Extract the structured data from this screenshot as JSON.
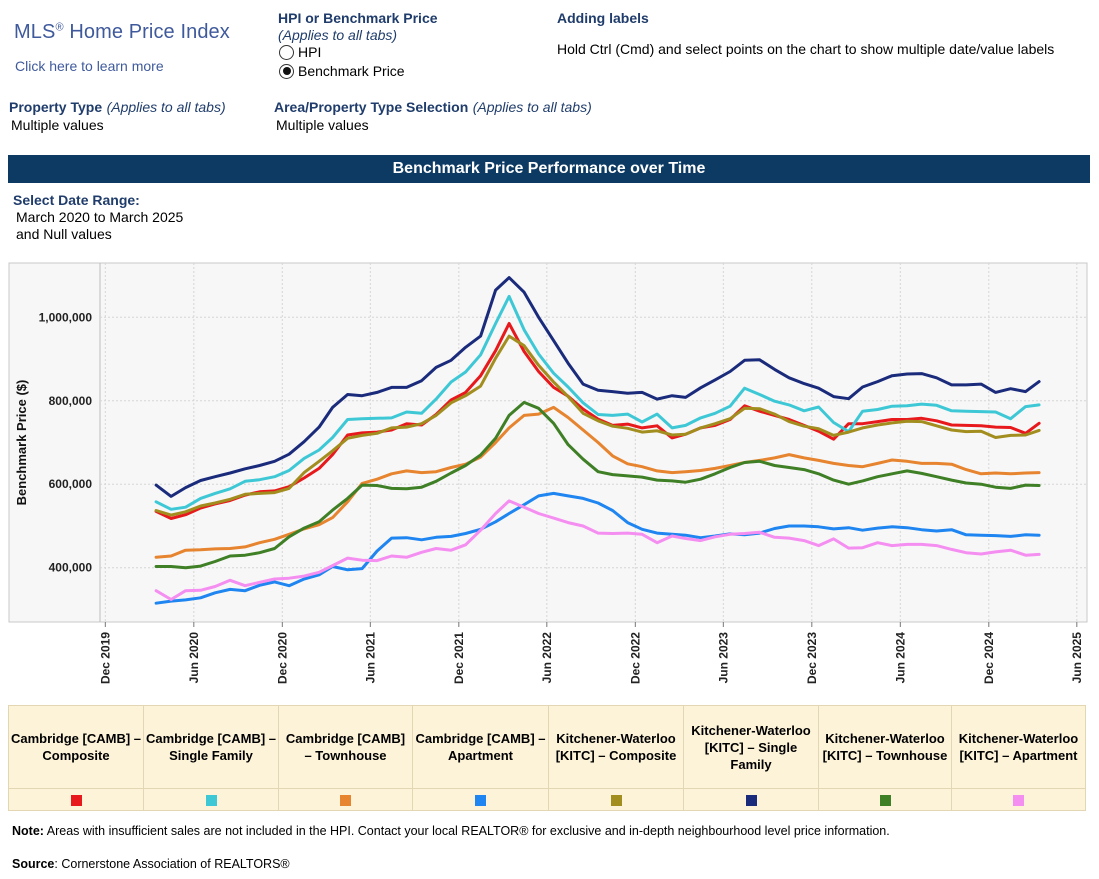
{
  "header": {
    "logo_title": "MLS",
    "logo_reg": "®",
    "logo_title_rest": " Home Price Index",
    "logo_link": "Click here to learn more",
    "hpi_toggle": {
      "title": "HPI or Benchmark Price",
      "subtitle": "(Applies to all tabs)",
      "options": [
        "HPI",
        "Benchmark Price"
      ],
      "selected": "Benchmark Price"
    },
    "labels_help": {
      "title": "Adding labels",
      "text": "Hold Ctrl (Cmd) and select points on the chart to show multiple date/value labels"
    },
    "property_type": {
      "label": "Property Type",
      "note": "(Applies to all tabs)",
      "value": "Multiple values"
    },
    "area_selection": {
      "label": "Area/Property Type Selection",
      "note": "(Applies to all tabs)",
      "value": "Multiple values"
    }
  },
  "banner": "Benchmark Price Performance over Time",
  "date_range": {
    "label": "Select Date Range:",
    "line1": "March 2020 to March 2025",
    "line2": "and Null values"
  },
  "chart_data": {
    "type": "line",
    "title": "Benchmark Price Performance over Time",
    "ylabel": "Benchmark Price ($)",
    "xlabel": "",
    "ylim": [
      270000,
      1130000
    ],
    "yticks": [
      400000,
      600000,
      800000,
      1000000
    ],
    "ytick_labels": [
      "400,000",
      "600,000",
      "800,000",
      "1,000,000"
    ],
    "xlim": [
      "2019-11-20",
      "2025-06-20"
    ],
    "xticks": [
      "2019-12-01",
      "2020-06-01",
      "2020-12-01",
      "2021-06-01",
      "2021-12-01",
      "2022-06-01",
      "2022-12-01",
      "2023-06-01",
      "2023-12-01",
      "2024-06-01",
      "2024-12-01",
      "2025-06-01"
    ],
    "xtick_labels": [
      "Dec 2019",
      "Jun 2020",
      "Dec 2020",
      "Jun 2021",
      "Dec 2021",
      "Jun 2022",
      "Dec 2022",
      "Jun 2023",
      "Dec 2023",
      "Jun 2024",
      "Dec 2024",
      "Jun 2025"
    ],
    "grid": true,
    "x": [
      "2020-03",
      "2020-04",
      "2020-05",
      "2020-06",
      "2020-07",
      "2020-08",
      "2020-09",
      "2020-10",
      "2020-11",
      "2020-12",
      "2021-01",
      "2021-02",
      "2021-03",
      "2021-04",
      "2021-05",
      "2021-06",
      "2021-07",
      "2021-08",
      "2021-09",
      "2021-10",
      "2021-11",
      "2021-12",
      "2022-01",
      "2022-02",
      "2022-03",
      "2022-04",
      "2022-05",
      "2022-06",
      "2022-07",
      "2022-08",
      "2022-09",
      "2022-10",
      "2022-11",
      "2022-12",
      "2023-01",
      "2023-02",
      "2023-03",
      "2023-04",
      "2023-05",
      "2023-06",
      "2023-07",
      "2023-08",
      "2023-09",
      "2023-10",
      "2023-11",
      "2023-12",
      "2024-01",
      "2024-02",
      "2024-03",
      "2024-04",
      "2024-05",
      "2024-06",
      "2024-07",
      "2024-08",
      "2024-09",
      "2024-10",
      "2024-11",
      "2024-12",
      "2025-01",
      "2025-02",
      "2025-03"
    ],
    "series": [
      {
        "name": "Cambridge [CAMB] – Composite",
        "color": "#e8191c",
        "values": [
          535000,
          518000,
          527000,
          543000,
          553000,
          561000,
          574000,
          582000,
          584000,
          594000,
          615000,
          638000,
          671000,
          718000,
          723000,
          725000,
          730000,
          745000,
          742000,
          767000,
          802000,
          820000,
          860000,
          920000,
          985000,
          918000,
          870000,
          832000,
          811000,
          780000,
          756000,
          741000,
          744000,
          735000,
          740000,
          711000,
          720000,
          735000,
          741000,
          755000,
          788000,
          775000,
          765000,
          755000,
          741000,
          727000,
          708000,
          745000,
          745000,
          750000,
          755000,
          755000,
          758000,
          752000,
          742000,
          741000,
          740000,
          737000,
          736000,
          722000,
          746000
        ]
      },
      {
        "name": "Cambridge [CAMB] – Single Family",
        "color": "#3ec8d6",
        "values": [
          558000,
          540000,
          545000,
          566000,
          578000,
          589000,
          607000,
          611000,
          618000,
          633000,
          662000,
          682000,
          712000,
          755000,
          757000,
          758000,
          759000,
          773000,
          770000,
          804000,
          845000,
          869000,
          910000,
          985000,
          1050000,
          970000,
          912000,
          866000,
          833000,
          795000,
          767000,
          765000,
          768000,
          749000,
          768000,
          735000,
          741000,
          759000,
          770000,
          787000,
          830000,
          815000,
          799000,
          790000,
          776000,
          785000,
          748000,
          726000,
          775000,
          779000,
          787000,
          788000,
          792000,
          789000,
          776000,
          775000,
          774000,
          773000,
          757000,
          786000,
          790000
        ]
      },
      {
        "name": "Cambridge [CAMB] – Townhouse",
        "color": "#e6842f",
        "values": [
          425000,
          428000,
          442000,
          443000,
          445000,
          446000,
          450000,
          460000,
          468000,
          480000,
          493000,
          503000,
          520000,
          558000,
          602000,
          612000,
          625000,
          632000,
          628000,
          630000,
          640000,
          648000,
          665000,
          700000,
          735000,
          765000,
          768000,
          784000,
          760000,
          730000,
          700000,
          668000,
          649000,
          642000,
          632000,
          628000,
          630000,
          633000,
          638000,
          645000,
          652000,
          657000,
          663000,
          671000,
          663000,
          657000,
          650000,
          645000,
          642000,
          650000,
          658000,
          655000,
          650000,
          650000,
          648000,
          635000,
          625000,
          627000,
          625000,
          627000,
          628000
        ]
      },
      {
        "name": "Cambridge [CAMB] – Apartment",
        "color": "#1f85f0",
        "values": [
          315000,
          320000,
          323000,
          328000,
          340000,
          348000,
          345000,
          358000,
          366000,
          357000,
          373000,
          383000,
          403000,
          395000,
          398000,
          440000,
          471000,
          472000,
          467000,
          473000,
          475000,
          482000,
          492000,
          510000,
          530000,
          551000,
          572000,
          578000,
          572000,
          566000,
          555000,
          537000,
          508000,
          492000,
          483000,
          480000,
          478000,
          472000,
          476000,
          481000,
          479000,
          483000,
          494000,
          500000,
          500000,
          498000,
          493000,
          496000,
          490000,
          495000,
          498000,
          496000,
          491000,
          488000,
          491000,
          479000,
          478000,
          477000,
          475000,
          479000,
          478000
        ]
      },
      {
        "name": "Kitchener-Waterloo [KITC] – Composite",
        "color": "#a28d1f",
        "values": [
          537000,
          526000,
          534000,
          548000,
          555000,
          564000,
          576000,
          578000,
          580000,
          590000,
          628000,
          655000,
          680000,
          710000,
          717000,
          722000,
          735000,
          737000,
          745000,
          765000,
          795000,
          812000,
          835000,
          902000,
          955000,
          932000,
          885000,
          845000,
          810000,
          770000,
          752000,
          739000,
          734000,
          725000,
          728000,
          718000,
          720000,
          735000,
          745000,
          757000,
          782000,
          781000,
          768000,
          750000,
          739000,
          733000,
          717000,
          725000,
          735000,
          742000,
          747000,
          751000,
          750000,
          740000,
          730000,
          726000,
          727000,
          712000,
          717000,
          718000,
          729000
        ]
      },
      {
        "name": "Kitchener-Waterloo [KITC] – Single Family",
        "color": "#1b2b7c",
        "values": [
          598000,
          571000,
          592000,
          609000,
          618000,
          627000,
          637000,
          645000,
          655000,
          672000,
          702000,
          737000,
          784000,
          815000,
          812000,
          820000,
          832000,
          832000,
          848000,
          880000,
          897000,
          928000,
          955000,
          1065000,
          1095000,
          1060000,
          1000000,
          944000,
          890000,
          840000,
          825000,
          822000,
          818000,
          820000,
          804000,
          812000,
          808000,
          831000,
          850000,
          870000,
          897000,
          898000,
          875000,
          855000,
          841000,
          830000,
          810000,
          805000,
          833000,
          846000,
          860000,
          864000,
          865000,
          855000,
          838000,
          838000,
          840000,
          820000,
          829000,
          822000,
          846000
        ]
      },
      {
        "name": "Kitchener-Waterloo [KITC] – Townhouse",
        "color": "#3f7f26",
        "values": [
          403000,
          403000,
          400000,
          404000,
          415000,
          428000,
          430000,
          436000,
          446000,
          474000,
          495000,
          510000,
          538000,
          566000,
          598000,
          597000,
          590000,
          589000,
          593000,
          607000,
          627000,
          645000,
          670000,
          710000,
          765000,
          796000,
          782000,
          746000,
          695000,
          660000,
          630000,
          623000,
          620000,
          617000,
          610000,
          608000,
          605000,
          612000,
          625000,
          640000,
          652000,
          655000,
          645000,
          640000,
          635000,
          625000,
          610000,
          600000,
          608000,
          618000,
          625000,
          632000,
          626000,
          618000,
          610000,
          603000,
          600000,
          593000,
          590000,
          598000,
          597000
        ]
      },
      {
        "name": "Kitchener-Waterloo [KITC] – Apartment",
        "color": "#f58ef1",
        "values": [
          345000,
          324000,
          345000,
          346000,
          355000,
          370000,
          357000,
          365000,
          373000,
          375000,
          380000,
          389000,
          405000,
          423000,
          418000,
          417000,
          428000,
          425000,
          437000,
          446000,
          442000,
          455000,
          490000,
          530000,
          560000,
          545000,
          530000,
          519000,
          508000,
          500000,
          483000,
          482000,
          483000,
          480000,
          460000,
          476000,
          470000,
          465000,
          474000,
          480000,
          482000,
          485000,
          473000,
          471000,
          465000,
          453000,
          469000,
          447000,
          448000,
          460000,
          453000,
          456000,
          456000,
          453000,
          444000,
          436000,
          433000,
          438000,
          442000,
          430000,
          432000
        ]
      }
    ]
  },
  "legend_items": [
    {
      "label": "Cambridge [CAMB] – Composite",
      "color": "#e8191c"
    },
    {
      "label": "Cambridge [CAMB] – Single Family",
      "color": "#3ec8d6"
    },
    {
      "label": "Cambridge [CAMB] – Townhouse",
      "color": "#e6842f"
    },
    {
      "label": "Cambridge [CAMB] – Apartment",
      "color": "#1f85f0"
    },
    {
      "label": "Kitchener-Waterloo [KITC] – Composite",
      "color": "#a28d1f"
    },
    {
      "label": "Kitchener-Waterloo [KITC] – Single Family",
      "color": "#1b2b7c"
    },
    {
      "label": "Kitchener-Waterloo [KITC] – Townhouse",
      "color": "#3f7f26"
    },
    {
      "label": "Kitchener-Waterloo [KITC] – Apartment",
      "color": "#f58ef1"
    }
  ],
  "footer": {
    "note_label": "Note:",
    "note_text": " Areas with insufficient sales are not included in the HPI. Contact your local REALTOR® for exclusive and in-depth neighbourhood level price information.",
    "source_label": "Source",
    "source_text": ": Cornerstone Association of REALTORS®"
  }
}
